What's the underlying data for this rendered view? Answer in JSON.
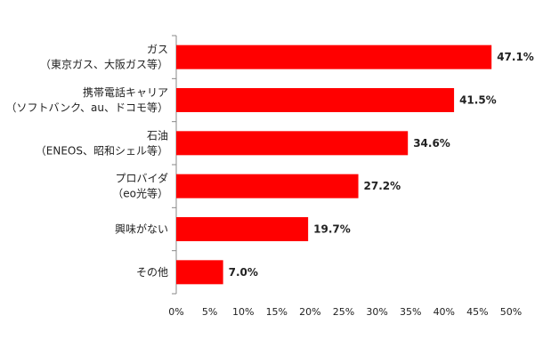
{
  "chart_data": {
    "type": "bar",
    "orientation": "horizontal",
    "categories": [
      [
        "ガス",
        "（東京ガス、大阪ガス等）"
      ],
      [
        "携帯電話キャリア",
        "（ソフトバンク、au、ドコモ等）"
      ],
      [
        "石油",
        "（ENEOS、昭和シェル等）"
      ],
      [
        "プロバイダ",
        "（eo光等）"
      ],
      [
        "興味がない"
      ],
      [
        "その他"
      ]
    ],
    "values": [
      47.1,
      41.5,
      34.6,
      27.2,
      19.7,
      7.0
    ],
    "value_labels": [
      "47.1%",
      "41.5%",
      "34.6%",
      "27.2%",
      "19.7%",
      "7.0%"
    ],
    "xlim": [
      0,
      50
    ],
    "x_ticks": [
      0,
      5,
      10,
      15,
      20,
      25,
      30,
      35,
      40,
      45,
      50
    ],
    "x_tick_labels": [
      "0%",
      "5%",
      "10%",
      "15%",
      "20%",
      "25%",
      "30%",
      "35%",
      "40%",
      "45%",
      "50%"
    ],
    "bar_color": "#ff0000",
    "grid": false,
    "legend": "none"
  }
}
